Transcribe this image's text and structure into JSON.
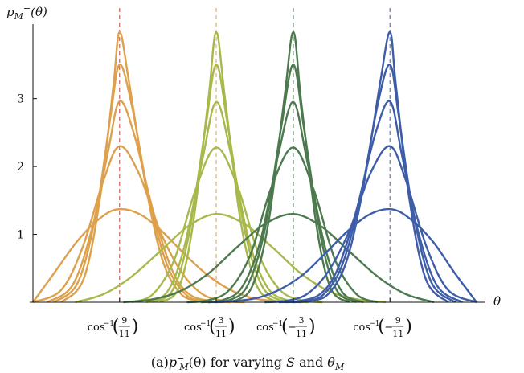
{
  "chart_data": {
    "type": "line",
    "caption_prefix": "(a)",
    "caption_func": "p",
    "caption_sup": "−",
    "caption_sub": "M",
    "caption_arg": "(θ)",
    "caption_mid": " for varying ",
    "caption_var1": "S",
    "caption_and": " and ",
    "caption_var2": "θ",
    "caption_var2_sub": "M",
    "ylabel_main": "p",
    "ylabel_sub": "M",
    "ylabel_sup": "−",
    "ylabel_arg": "(θ)",
    "xlabel": "θ",
    "ylim": [
      0,
      4.05
    ],
    "xlim": [
      0,
      3.1416
    ],
    "y_ticks": [
      1,
      2,
      3
    ],
    "y_tick_labels": [
      "1",
      "2",
      "3"
    ],
    "x_ticks": [
      {
        "x": 0.6135,
        "label": "cos",
        "frac_sign": "",
        "num": "9",
        "den": "11"
      },
      {
        "x": 1.2977,
        "label": "cos",
        "frac_sign": "",
        "num": "3",
        "den": "11"
      },
      {
        "x": 1.8439,
        "label": "cos",
        "frac_sign": "−",
        "num": "3",
        "den": "11"
      },
      {
        "x": 2.5281,
        "label": "cos",
        "frac_sign": "−",
        "num": "9",
        "den": "11"
      }
    ],
    "x_tick_exponent": "−1",
    "grid": false,
    "legend": "none",
    "series": [
      {
        "group": 0,
        "color": "#DDA04C",
        "mode": 0.6135,
        "peak": 1.38,
        "points": [
          [
            0,
            0
          ],
          [
            0.157,
            0.45
          ],
          [
            0.314,
            0.9
          ],
          [
            0.471,
            1.23
          ],
          [
            0.6,
            1.37
          ],
          [
            0.754,
            1.3
          ],
          [
            0.911,
            1.05
          ],
          [
            1.068,
            0.72
          ],
          [
            1.225,
            0.42
          ],
          [
            1.382,
            0.2
          ],
          [
            1.539,
            0.07
          ],
          [
            1.7,
            0.02
          ],
          [
            1.9,
            0
          ]
        ]
      },
      {
        "group": 0,
        "color": "#DDA04C",
        "mode": 0.6135,
        "peak": 2.3,
        "points": [
          [
            0,
            0
          ],
          [
            0.2,
            0.18
          ],
          [
            0.35,
            0.8
          ],
          [
            0.5,
            1.8
          ],
          [
            0.6135,
            2.3
          ],
          [
            0.75,
            1.9
          ],
          [
            0.9,
            1.05
          ],
          [
            1.05,
            0.45
          ],
          [
            1.2,
            0.12
          ],
          [
            1.35,
            0.02
          ],
          [
            1.5,
            0
          ]
        ]
      },
      {
        "group": 0,
        "color": "#DDA04C",
        "mode": 0.6135,
        "peak": 2.96,
        "points": [
          [
            0.1,
            0
          ],
          [
            0.28,
            0.25
          ],
          [
            0.42,
            1.1
          ],
          [
            0.53,
            2.2
          ],
          [
            0.6135,
            2.96
          ],
          [
            0.72,
            2.45
          ],
          [
            0.85,
            1.35
          ],
          [
            0.98,
            0.5
          ],
          [
            1.1,
            0.13
          ],
          [
            1.25,
            0.02
          ],
          [
            1.4,
            0
          ]
        ]
      },
      {
        "group": 0,
        "color": "#DDA04C",
        "mode": 0.6135,
        "peak": 3.5,
        "points": [
          [
            0.15,
            0
          ],
          [
            0.32,
            0.3
          ],
          [
            0.45,
            1.35
          ],
          [
            0.55,
            2.75
          ],
          [
            0.6135,
            3.5
          ],
          [
            0.7,
            2.9
          ],
          [
            0.82,
            1.55
          ],
          [
            0.95,
            0.55
          ],
          [
            1.08,
            0.12
          ],
          [
            1.2,
            0.02
          ],
          [
            1.35,
            0
          ]
        ]
      },
      {
        "group": 0,
        "color": "#DDA04C",
        "mode": 0.6135,
        "peak": 3.98,
        "points": [
          [
            0.2,
            0
          ],
          [
            0.36,
            0.35
          ],
          [
            0.48,
            1.6
          ],
          [
            0.57,
            3.2
          ],
          [
            0.6135,
            3.98
          ],
          [
            0.68,
            3.25
          ],
          [
            0.8,
            1.7
          ],
          [
            0.92,
            0.6
          ],
          [
            1.05,
            0.12
          ],
          [
            1.18,
            0.02
          ],
          [
            1.3,
            0
          ]
        ]
      },
      {
        "group": 1,
        "color": "#A8B84A",
        "mode": 1.2977,
        "peak": 1.3,
        "points": [
          [
            0.3,
            0
          ],
          [
            0.5,
            0.12
          ],
          [
            0.7,
            0.38
          ],
          [
            0.9,
            0.75
          ],
          [
            1.1,
            1.12
          ],
          [
            1.2977,
            1.3
          ],
          [
            1.5,
            1.15
          ],
          [
            1.7,
            0.8
          ],
          [
            1.9,
            0.42
          ],
          [
            2.1,
            0.16
          ],
          [
            2.3,
            0.04
          ],
          [
            2.5,
            0
          ]
        ]
      },
      {
        "group": 1,
        "color": "#A8B84A",
        "mode": 1.2977,
        "peak": 2.28,
        "points": [
          [
            0.7,
            0
          ],
          [
            0.85,
            0.12
          ],
          [
            1.0,
            0.62
          ],
          [
            1.15,
            1.65
          ],
          [
            1.2977,
            2.28
          ],
          [
            1.45,
            1.7
          ],
          [
            1.6,
            0.7
          ],
          [
            1.75,
            0.18
          ],
          [
            1.9,
            0.03
          ],
          [
            2.05,
            0
          ]
        ]
      },
      {
        "group": 1,
        "color": "#A8B84A",
        "mode": 1.2977,
        "peak": 2.95,
        "points": [
          [
            0.8,
            0
          ],
          [
            0.95,
            0.15
          ],
          [
            1.07,
            0.8
          ],
          [
            1.2,
            2.1
          ],
          [
            1.2977,
            2.95
          ],
          [
            1.4,
            2.2
          ],
          [
            1.53,
            0.9
          ],
          [
            1.66,
            0.22
          ],
          [
            1.8,
            0.03
          ],
          [
            1.95,
            0
          ]
        ]
      },
      {
        "group": 1,
        "color": "#A8B84A",
        "mode": 1.2977,
        "peak": 3.5,
        "points": [
          [
            0.85,
            0
          ],
          [
            0.99,
            0.18
          ],
          [
            1.1,
            0.95
          ],
          [
            1.22,
            2.55
          ],
          [
            1.2977,
            3.5
          ],
          [
            1.38,
            2.6
          ],
          [
            1.5,
            1.05
          ],
          [
            1.62,
            0.25
          ],
          [
            1.75,
            0.03
          ],
          [
            1.9,
            0
          ]
        ]
      },
      {
        "group": 1,
        "color": "#A8B84A",
        "mode": 1.2977,
        "peak": 3.98,
        "points": [
          [
            0.9,
            0
          ],
          [
            1.03,
            0.2
          ],
          [
            1.13,
            1.1
          ],
          [
            1.24,
            2.95
          ],
          [
            1.2977,
            3.98
          ],
          [
            1.36,
            3.0
          ],
          [
            1.47,
            1.2
          ],
          [
            1.58,
            0.27
          ],
          [
            1.7,
            0.03
          ],
          [
            1.85,
            0
          ]
        ]
      },
      {
        "group": 2,
        "color": "#4C7A4E",
        "mode": 1.8439,
        "peak": 1.3,
        "points": [
          [
            0.64,
            0
          ],
          [
            0.84,
            0.04
          ],
          [
            1.04,
            0.16
          ],
          [
            1.24,
            0.42
          ],
          [
            1.44,
            0.8
          ],
          [
            1.64,
            1.15
          ],
          [
            1.8439,
            1.3
          ],
          [
            2.04,
            1.12
          ],
          [
            2.24,
            0.75
          ],
          [
            2.44,
            0.38
          ],
          [
            2.64,
            0.12
          ],
          [
            2.84,
            0
          ]
        ]
      },
      {
        "group": 2,
        "color": "#4C7A4E",
        "mode": 1.8439,
        "peak": 2.28,
        "points": [
          [
            1.09,
            0
          ],
          [
            1.24,
            0.03
          ],
          [
            1.39,
            0.18
          ],
          [
            1.54,
            0.7
          ],
          [
            1.69,
            1.7
          ],
          [
            1.8439,
            2.28
          ],
          [
            1.99,
            1.65
          ],
          [
            2.14,
            0.62
          ],
          [
            2.29,
            0.12
          ],
          [
            2.44,
            0
          ]
        ]
      },
      {
        "group": 2,
        "color": "#4C7A4E",
        "mode": 1.8439,
        "peak": 2.95,
        "points": [
          [
            1.19,
            0
          ],
          [
            1.34,
            0.03
          ],
          [
            1.48,
            0.22
          ],
          [
            1.61,
            0.9
          ],
          [
            1.74,
            2.2
          ],
          [
            1.8439,
            2.95
          ],
          [
            1.94,
            2.1
          ],
          [
            2.07,
            0.8
          ],
          [
            2.19,
            0.15
          ],
          [
            2.34,
            0
          ]
        ]
      },
      {
        "group": 2,
        "color": "#4C7A4E",
        "mode": 1.8439,
        "peak": 3.5,
        "points": [
          [
            1.24,
            0
          ],
          [
            1.39,
            0.03
          ],
          [
            1.52,
            0.25
          ],
          [
            1.64,
            1.05
          ],
          [
            1.76,
            2.6
          ],
          [
            1.8439,
            3.5
          ],
          [
            1.92,
            2.55
          ],
          [
            2.04,
            0.95
          ],
          [
            2.15,
            0.18
          ],
          [
            2.29,
            0
          ]
        ]
      },
      {
        "group": 2,
        "color": "#4C7A4E",
        "mode": 1.8439,
        "peak": 3.98,
        "points": [
          [
            1.29,
            0
          ],
          [
            1.44,
            0.03
          ],
          [
            1.56,
            0.27
          ],
          [
            1.67,
            1.2
          ],
          [
            1.78,
            3.0
          ],
          [
            1.8439,
            3.98
          ],
          [
            1.9,
            2.95
          ],
          [
            2.01,
            1.1
          ],
          [
            2.11,
            0.2
          ],
          [
            2.24,
            0
          ]
        ]
      },
      {
        "group": 3,
        "color": "#3E5DA8",
        "mode": 2.5281,
        "peak": 1.38,
        "points": [
          [
            1.24,
            0
          ],
          [
            1.44,
            0.02
          ],
          [
            1.6,
            0.07
          ],
          [
            1.76,
            0.2
          ],
          [
            1.92,
            0.42
          ],
          [
            2.07,
            0.72
          ],
          [
            2.23,
            1.05
          ],
          [
            2.39,
            1.3
          ],
          [
            2.54,
            1.37
          ],
          [
            2.67,
            1.23
          ],
          [
            2.83,
            0.9
          ],
          [
            2.98,
            0.45
          ],
          [
            3.1416,
            0
          ]
        ]
      },
      {
        "group": 3,
        "color": "#3E5DA8",
        "mode": 2.5281,
        "peak": 2.3,
        "points": [
          [
            1.64,
            0
          ],
          [
            1.79,
            0.02
          ],
          [
            1.94,
            0.12
          ],
          [
            2.09,
            0.45
          ],
          [
            2.24,
            1.05
          ],
          [
            2.39,
            1.9
          ],
          [
            2.5281,
            2.3
          ],
          [
            2.64,
            1.8
          ],
          [
            2.79,
            0.8
          ],
          [
            2.94,
            0.18
          ],
          [
            3.1416,
            0
          ]
        ]
      },
      {
        "group": 3,
        "color": "#3E5DA8",
        "mode": 2.5281,
        "peak": 2.96,
        "points": [
          [
            1.74,
            0
          ],
          [
            1.89,
            0.02
          ],
          [
            2.04,
            0.13
          ],
          [
            2.16,
            0.5
          ],
          [
            2.29,
            1.35
          ],
          [
            2.42,
            2.45
          ],
          [
            2.5281,
            2.96
          ],
          [
            2.61,
            2.2
          ],
          [
            2.72,
            1.1
          ],
          [
            2.86,
            0.25
          ],
          [
            3.04,
            0
          ]
        ]
      },
      {
        "group": 3,
        "color": "#3E5DA8",
        "mode": 2.5281,
        "peak": 3.5,
        "points": [
          [
            1.79,
            0
          ],
          [
            1.94,
            0.02
          ],
          [
            2.06,
            0.12
          ],
          [
            2.19,
            0.55
          ],
          [
            2.32,
            1.55
          ],
          [
            2.44,
            2.9
          ],
          [
            2.5281,
            3.5
          ],
          [
            2.59,
            2.75
          ],
          [
            2.69,
            1.35
          ],
          [
            2.82,
            0.3
          ],
          [
            2.99,
            0
          ]
        ]
      },
      {
        "group": 3,
        "color": "#3E5DA8",
        "mode": 2.5281,
        "peak": 3.98,
        "points": [
          [
            1.84,
            0
          ],
          [
            1.96,
            0.02
          ],
          [
            2.09,
            0.12
          ],
          [
            2.22,
            0.6
          ],
          [
            2.34,
            1.7
          ],
          [
            2.46,
            3.25
          ],
          [
            2.5281,
            3.98
          ],
          [
            2.57,
            3.2
          ],
          [
            2.66,
            1.6
          ],
          [
            2.78,
            0.35
          ],
          [
            2.94,
            0
          ]
        ]
      }
    ],
    "mode_lines": [
      {
        "x": 0.6135,
        "color": "#C0463A"
      },
      {
        "x": 1.2977,
        "color": "#DDA04C"
      },
      {
        "x": 1.8439,
        "color": "#4C7A4E"
      },
      {
        "x": 2.5281,
        "color": "#3E5DA8"
      }
    ]
  }
}
